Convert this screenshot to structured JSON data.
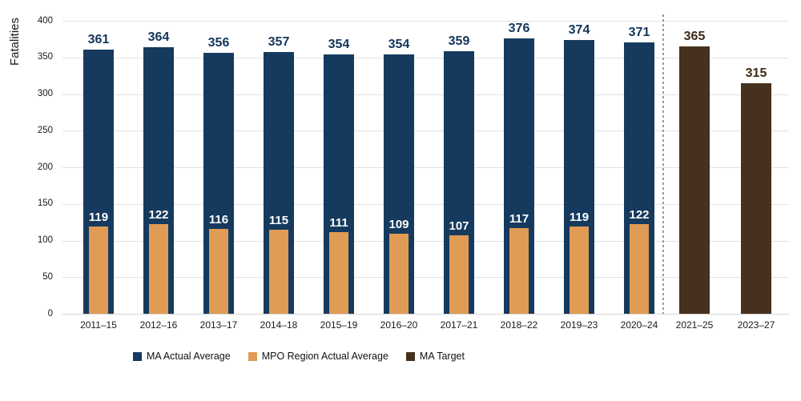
{
  "chart_data": {
    "type": "bar",
    "title": "",
    "ylabel": "Fatalities",
    "xlabel": "",
    "ylim": [
      0,
      400
    ],
    "yticks": [
      0,
      50,
      100,
      150,
      200,
      250,
      300,
      350,
      400
    ],
    "grid": true,
    "legend_position": "bottom",
    "categories": [
      "2011–15",
      "2012–16",
      "2013–17",
      "2014–18",
      "2015–19",
      "2016–20",
      "2017–21",
      "2018–22",
      "2019–23",
      "2020–24"
    ],
    "series": [
      {
        "name": "MA Actual Average",
        "color": "#153a5e",
        "label_color": "#14355a",
        "values": [
          361,
          364,
          356,
          357,
          354,
          354,
          359,
          376,
          374,
          371
        ]
      },
      {
        "name": "MPO Region Actual Average",
        "color": "#e09b55",
        "label_color": "#ffffff",
        "values": [
          119,
          122,
          116,
          115,
          111,
          109,
          107,
          117,
          119,
          122
        ]
      }
    ],
    "target_series": {
      "name": "MA Target",
      "color": "#46301e",
      "label_color": "#3f2a18",
      "categories": [
        "2021–25",
        "2023–27"
      ],
      "values": [
        365,
        315
      ]
    },
    "separator": {
      "style": "dashed",
      "between": [
        "2020–24",
        "2021–25"
      ]
    }
  },
  "legend": {
    "items": [
      {
        "label": "MA Actual Average",
        "color": "#153a5e"
      },
      {
        "label": "MPO Region Actual Average",
        "color": "#e09b55"
      },
      {
        "label": "MA Target",
        "color": "#46301e"
      }
    ]
  },
  "styles": {
    "gridline_color": "#e2e2e2",
    "dashed_line_color": "#9a9a9a",
    "axis_text_color": "#1a1a1a",
    "background": "#ffffff"
  }
}
